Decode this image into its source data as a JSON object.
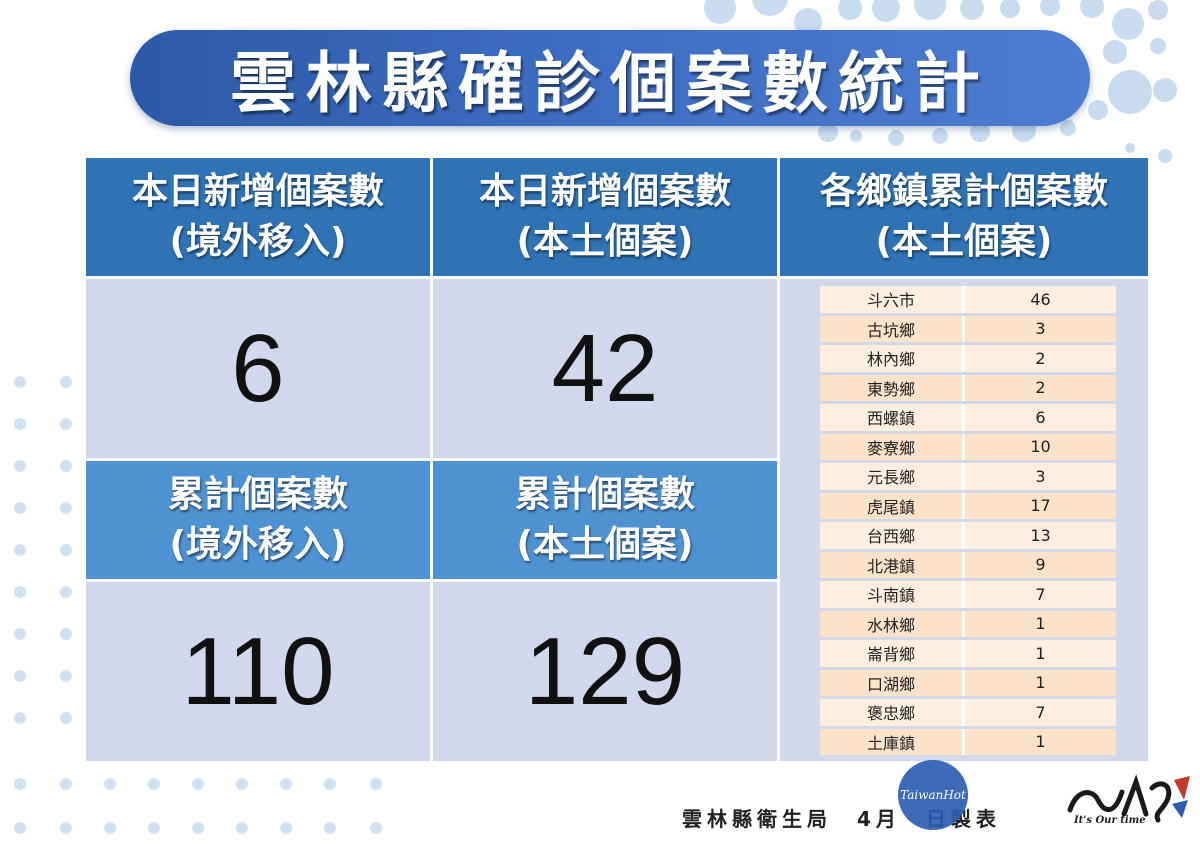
{
  "title": "雲林縣確診個案數統計",
  "headers": {
    "daily_imported": [
      "本日新增個案數",
      "(境外移入)"
    ],
    "daily_local": [
      "本日新增個案數",
      "(本土個案)"
    ],
    "township_local": [
      "各鄉鎮累計個案數",
      "(本土個案)"
    ],
    "cumulative_imported": [
      "累計個案數",
      "(境外移入)"
    ],
    "cumulative_local": [
      "累計個案數",
      "(本土個案)"
    ]
  },
  "values": {
    "daily_imported": "6",
    "daily_local": "42",
    "cumulative_imported": "110",
    "cumulative_local": "129"
  },
  "townships": [
    {
      "name": "斗六市",
      "count": "46"
    },
    {
      "name": "古坑鄉",
      "count": "3"
    },
    {
      "name": "林內鄉",
      "count": "2"
    },
    {
      "name": "東勢鄉",
      "count": "2"
    },
    {
      "name": "西螺鎮",
      "count": "6"
    },
    {
      "name": "麥寮鄉",
      "count": "10"
    },
    {
      "name": "元長鄉",
      "count": "3"
    },
    {
      "name": "虎尾鎮",
      "count": "17"
    },
    {
      "name": "台西鄉",
      "count": "13"
    },
    {
      "name": "北港鎮",
      "count": "9"
    },
    {
      "name": "斗南鎮",
      "count": "7"
    },
    {
      "name": "水林鄉",
      "count": "1"
    },
    {
      "name": "崙背鄉",
      "count": "1"
    },
    {
      "name": "口湖鄉",
      "count": "1"
    },
    {
      "name": "褒忠鄉",
      "count": "7"
    },
    {
      "name": "土庫鎮",
      "count": "1"
    }
  ],
  "footer": "雲林縣衛生局　4月　日製表",
  "watermark": "TaiwanHot",
  "logo_slogan": "It's Our time",
  "colors": {
    "title_blue": "#3f6fc4",
    "header_dark": "#2f73b5",
    "header_light": "#4f92d1",
    "value_bg": "#d3d7ec",
    "table_row": "#fce2c8",
    "dot_blue": "#c5d8ef"
  }
}
